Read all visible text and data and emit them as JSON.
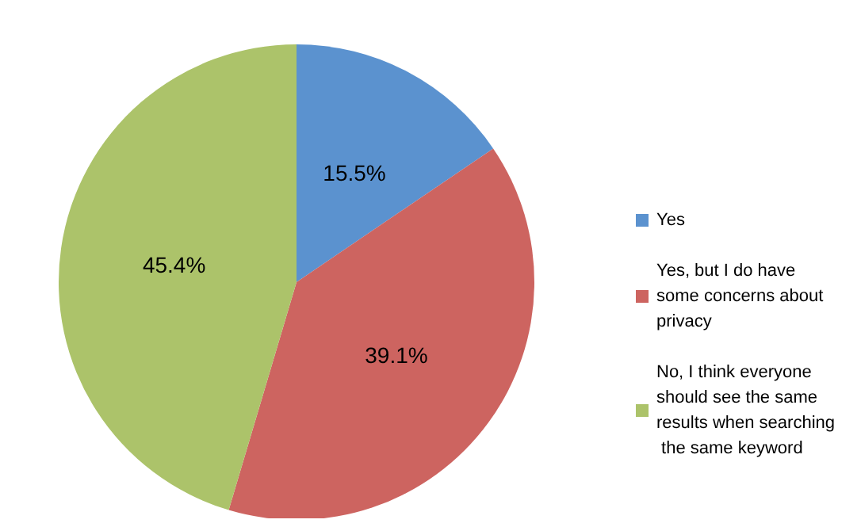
{
  "chart_data": {
    "type": "pie",
    "categories": [
      "Yes",
      "Yes, but I do have some concerns about privacy",
      "No, I think everyone should see the same results when searching the same keyword"
    ],
    "values": [
      15.5,
      39.1,
      45.4
    ],
    "value_labels": [
      "15.5%",
      "39.1%",
      "45.4%"
    ],
    "colors": [
      "#5b92cf",
      "#cd6460",
      "#acc36a"
    ],
    "legend": "right"
  }
}
